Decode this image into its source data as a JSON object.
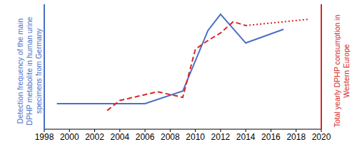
{
  "chart_data": {
    "type": "line",
    "y_label": "Detection frequency of the main DPHP metabolite in human urine specimens from Germany",
    "y2_label": "Total yearly DPHP consumption in Western Europe",
    "x": [
      1999,
      2003,
      2004,
      2006,
      2007,
      2009,
      2010,
      2011,
      2012,
      2013,
      2014,
      2017,
      2019
    ],
    "xlim": [
      1998,
      2020
    ],
    "xticks": [
      1998,
      2000,
      2002,
      2004,
      2006,
      2008,
      2010,
      2012,
      2014,
      2016,
      2018,
      2020
    ],
    "ylim": [
      0,
      100
    ],
    "y2lim": [
      0,
      100
    ],
    "tick_labels": "x",
    "grid": false,
    "series": [
      {
        "name": "Detection frequency of the main DPHP metabolite in human urine specimens from Germany",
        "color": "#4a6fc7",
        "line_style": "solid",
        "values": [
          20.5,
          null,
          null,
          20.5,
          null,
          30.5,
          null,
          79,
          92,
          null,
          69,
          80,
          null
        ]
      },
      {
        "name": "Total yearly DPHP consumption in Western Europe",
        "color": "#d42a2a",
        "line_style": "dashed",
        "axis": "y2",
        "values": [
          null,
          15,
          23,
          null,
          30,
          25.5,
          64,
          71,
          77,
          86,
          83,
          null,
          null
        ]
      },
      {
        "name": "Total yearly DPHP consumption in Western Europe",
        "color": "#d42a2a",
        "line_style": "dotted",
        "axis": "y2",
        "values": [
          null,
          null,
          null,
          null,
          null,
          null,
          null,
          null,
          null,
          null,
          83,
          null,
          88
        ]
      }
    ]
  }
}
